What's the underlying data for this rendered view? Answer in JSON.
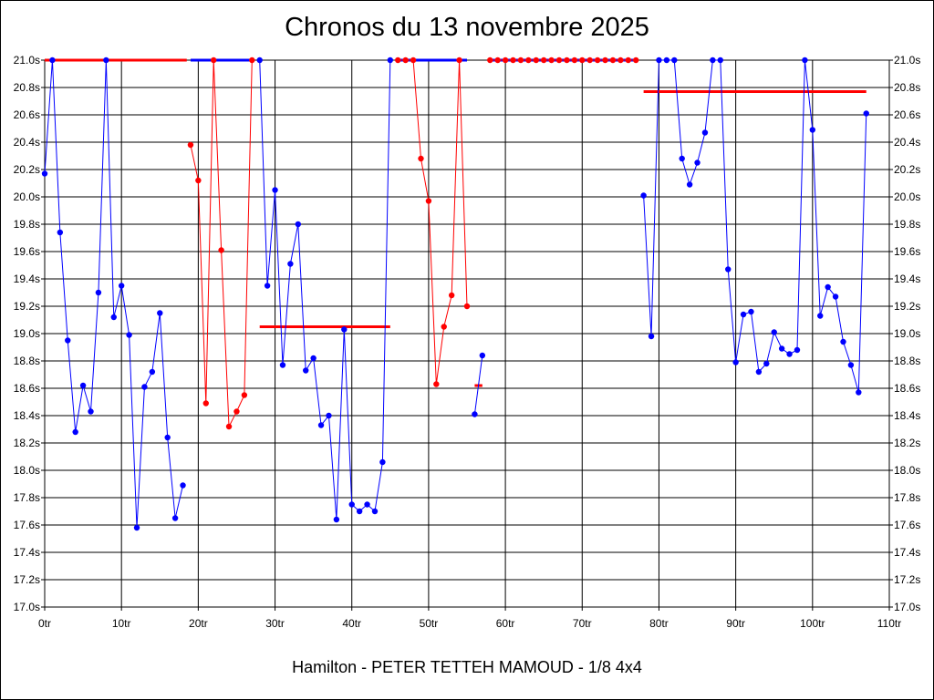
{
  "chart_data": {
    "type": "line",
    "title": "Chronos du 13 novembre 2025",
    "subtitle": "Hamilton - PETER TETTEH MAMOUD - 1/8 4x4",
    "xlim": [
      0,
      110
    ],
    "ylim": [
      17.0,
      21.0
    ],
    "x_ticks": [
      0,
      10,
      20,
      30,
      40,
      50,
      60,
      70,
      80,
      90,
      100,
      110
    ],
    "x_tick_labels": [
      "0tr",
      "10tr",
      "20tr",
      "30tr",
      "40tr",
      "50tr",
      "60tr",
      "70tr",
      "80tr",
      "90tr",
      "100tr",
      "110tr"
    ],
    "y_ticks": [
      17.0,
      17.2,
      17.4,
      17.6,
      17.8,
      18.0,
      18.2,
      18.4,
      18.6,
      18.8,
      19.0,
      19.2,
      19.4,
      19.6,
      19.8,
      20.0,
      20.2,
      20.4,
      20.6,
      20.8,
      21.0
    ],
    "y_tick_labels": [
      "17.0s",
      "17.2s",
      "17.4s",
      "17.6s",
      "17.8s",
      "18.0s",
      "18.2s",
      "18.4s",
      "18.6s",
      "18.8s",
      "19.0s",
      "19.2s",
      "19.4s",
      "19.6s",
      "19.8s",
      "20.0s",
      "20.2s",
      "20.4s",
      "20.6s",
      "20.8s",
      "21.0s"
    ],
    "grid": true,
    "series": [
      {
        "color": "#0000ff",
        "x": [
          0,
          1,
          2,
          3,
          4,
          5,
          6,
          7,
          8,
          9,
          10,
          11,
          12,
          13,
          14,
          15,
          16,
          17,
          18
        ],
        "y": [
          20.17,
          21.0,
          19.74,
          18.95,
          18.28,
          18.62,
          18.43,
          19.3,
          21.0,
          19.12,
          19.35,
          18.99,
          17.58,
          18.61,
          18.72,
          19.15,
          18.24,
          17.65,
          17.89
        ]
      },
      {
        "color": "#ff0000",
        "x": [
          19,
          20,
          21,
          22,
          23,
          24,
          25,
          26,
          27
        ],
        "y": [
          20.38,
          20.12,
          18.49,
          21.0,
          19.61,
          18.32,
          18.43,
          18.55,
          21.0
        ]
      },
      {
        "color": "#0000ff",
        "x": [
          28,
          29,
          30,
          31,
          32,
          33,
          34,
          35,
          36,
          37,
          38,
          39,
          40,
          41,
          42,
          43,
          44,
          45
        ],
        "y": [
          21.0,
          19.35,
          20.05,
          18.77,
          19.51,
          19.8,
          18.73,
          18.82,
          18.33,
          18.4,
          17.64,
          19.03,
          17.75,
          17.7,
          17.75,
          17.7,
          18.06,
          21.0
        ]
      },
      {
        "color": "#ff0000",
        "x": [
          46,
          47,
          48,
          49,
          50,
          51,
          52,
          53,
          54,
          55
        ],
        "y": [
          21.0,
          21.0,
          21.0,
          20.28,
          19.97,
          18.63,
          19.05,
          19.28,
          21.0,
          19.2
        ]
      },
      {
        "color": "#0000ff",
        "x": [
          56,
          57
        ],
        "y": [
          18.41,
          18.84
        ]
      },
      {
        "color": "#ff0000",
        "x": [
          58,
          59,
          60,
          61,
          62,
          63,
          64,
          65,
          66,
          67,
          68,
          69,
          70,
          71,
          72,
          73,
          74,
          75,
          76,
          77
        ],
        "y": [
          21.0,
          21.0,
          21.0,
          21.0,
          21.0,
          21.0,
          21.0,
          21.0,
          21.0,
          21.0,
          21.0,
          21.0,
          21.0,
          21.0,
          21.0,
          21.0,
          21.0,
          21.0,
          21.0,
          21.0
        ]
      },
      {
        "color": "#0000ff",
        "x": [
          78,
          79,
          80,
          81,
          82,
          83,
          84,
          85,
          86,
          87,
          88,
          89,
          90,
          91,
          92,
          93,
          94,
          95,
          96,
          97,
          98,
          99,
          100,
          101,
          102,
          103,
          104,
          105,
          106,
          107
        ],
        "y": [
          20.01,
          18.98,
          21.0,
          21.0,
          21.0,
          20.28,
          20.09,
          20.25,
          20.47,
          21.0,
          21.0,
          19.47,
          18.79,
          19.14,
          19.16,
          18.72,
          18.78,
          19.01,
          18.89,
          18.85,
          18.88,
          21.0,
          20.49,
          19.13,
          19.34,
          19.27,
          18.94,
          18.77,
          18.57,
          20.61
        ]
      }
    ],
    "reference_lines": [
      {
        "color": "#ff0000",
        "x": [
          0,
          18.5
        ],
        "y": 21.0
      },
      {
        "color": "#0000ff",
        "x": [
          19,
          27
        ],
        "y": 21.0
      },
      {
        "color": "#ff0000",
        "x": [
          28,
          45
        ],
        "y": 19.05
      },
      {
        "color": "#0000ff",
        "x": [
          46,
          55
        ],
        "y": 21.0
      },
      {
        "color": "#ff0000",
        "x": [
          56,
          57
        ],
        "y": 18.62
      },
      {
        "color": "#0000ff",
        "x": [
          58,
          77
        ],
        "y": 21.0
      },
      {
        "color": "#ff0000",
        "x": [
          78,
          107
        ],
        "y": 20.77
      }
    ]
  }
}
